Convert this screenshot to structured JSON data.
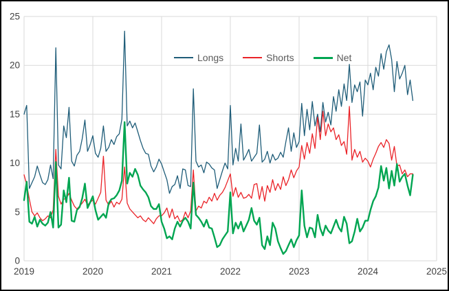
{
  "chart_data": {
    "type": "line",
    "title": "",
    "xlabel": "",
    "ylabel": "",
    "xlim": [
      2019,
      2025
    ],
    "ylim": [
      0,
      25
    ],
    "x_ticks": [
      "2019",
      "2020",
      "2021",
      "2022",
      "2023",
      "2024",
      "2025"
    ],
    "x_tick_values": [
      2019,
      2020,
      2021,
      2022,
      2023,
      2024,
      2025
    ],
    "y_ticks": [
      "0",
      "5",
      "10",
      "15",
      "20",
      "25"
    ],
    "y_tick_values": [
      0,
      5,
      10,
      15,
      20,
      25
    ],
    "grid": true,
    "grid_color": "#d9d9d9",
    "tick_label_color": "#404040",
    "legend_position": "top-center-inside",
    "x_start": 2019.0,
    "x_step": 0.0384615,
    "series": [
      {
        "name": "Longs",
        "color": "#1e5c78",
        "line_width": 1.3,
        "values": [
          15.0,
          15.9,
          7.4,
          8.0,
          8.6,
          9.7,
          8.8,
          8.0,
          7.8,
          8.3,
          9.8,
          8.4,
          21.8,
          9.8,
          9.4,
          13.8,
          12.6,
          15.7,
          10.2,
          9.7,
          10.8,
          11.2,
          12.5,
          14.4,
          11.2,
          11.9,
          12.8,
          11.0,
          10.6,
          11.5,
          13.8,
          11.2,
          11.6,
          12.4,
          11.9,
          12.7,
          13.0,
          14.5,
          23.5,
          13.8,
          14.3,
          13.6,
          14.1,
          13.2,
          12.3,
          11.5,
          11.0,
          10.9,
          9.7,
          9.1,
          9.6,
          10.4,
          9.9,
          9.1,
          8.3,
          6.9,
          7.6,
          7.8,
          8.7,
          7.4,
          9.4,
          9.3,
          7.7,
          7.6,
          17.6,
          10.2,
          9.6,
          9.8,
          9.0,
          10.1,
          9.9,
          9.5,
          9.3,
          7.4,
          8.3,
          9.2,
          10.0,
          9.4,
          15.9,
          9.8,
          11.5,
          10.2,
          14.0,
          10.3,
          10.8,
          11.4,
          10.2,
          10.6,
          11.0,
          13.9,
          10.1,
          10.4,
          11.2,
          10.0,
          10.9,
          10.3,
          10.5,
          11.1,
          10.6,
          12.2,
          13.6,
          11.2,
          13.1,
          11.6,
          12.2,
          16.1,
          12.8,
          15.5,
          13.4,
          16.3,
          13.8,
          15.0,
          13.2,
          16.2,
          14.2,
          15.2,
          13.9,
          16.8,
          15.3,
          17.5,
          15.8,
          18.1,
          16.4,
          20.1,
          16.2,
          18.0,
          17.3,
          18.3,
          14.8,
          18.5,
          18.0,
          19.2,
          17.5,
          19.8,
          18.9,
          21.2,
          19.6,
          21.4,
          22.1,
          20.6,
          17.3,
          20.4,
          18.6,
          19.2,
          20.0,
          17.0,
          18.5,
          16.4
        ]
      },
      {
        "name": "Shorts",
        "color": "#ea2227",
        "line_width": 1.3,
        "values": [
          8.8,
          7.8,
          6.3,
          5.0,
          4.6,
          4.9,
          4.4,
          4.1,
          4.3,
          4.6,
          4.4,
          5.2,
          11.4,
          6.6,
          5.8,
          6.3,
          6.4,
          6.9,
          6.2,
          5.6,
          5.3,
          5.6,
          5.9,
          6.3,
          5.7,
          6.0,
          6.2,
          5.8,
          6.4,
          7.0,
          10.7,
          6.2,
          5.7,
          6.1,
          5.5,
          6.0,
          5.8,
          6.3,
          9.6,
          5.9,
          5.3,
          5.0,
          4.7,
          4.4,
          4.6,
          4.2,
          4.0,
          4.4,
          4.1,
          3.8,
          4.3,
          4.6,
          4.6,
          4.9,
          5.4,
          4.4,
          5.3,
          4.3,
          4.6,
          4.0,
          4.2,
          5.0,
          4.4,
          5.1,
          9.3,
          5.1,
          5.6,
          5.4,
          6.1,
          5.9,
          6.5,
          6.1,
          6.9,
          6.2,
          6.7,
          7.0,
          7.5,
          8.2,
          8.9,
          6.6,
          7.5,
          6.5,
          7.0,
          6.4,
          6.5,
          6.8,
          6.4,
          7.8,
          7.9,
          6.3,
          7.6,
          6.1,
          7.7,
          7.0,
          8.3,
          7.2,
          7.9,
          7.3,
          8.6,
          7.7,
          8.3,
          9.3,
          8.5,
          9.2,
          9.6,
          11.8,
          10.4,
          12.1,
          11.0,
          13.0,
          11.5,
          14.7,
          12.4,
          15.3,
          12.8,
          14.0,
          13.2,
          13.6,
          12.4,
          12.9,
          11.8,
          12.2,
          10.9,
          15.8,
          10.3,
          11.4,
          10.6,
          11.2,
          10.1,
          10.5,
          10.2,
          9.6,
          10.4,
          11.0,
          11.7,
          12.1,
          11.6,
          12.4,
          12.0,
          10.3,
          11.7,
          9.7,
          9.8,
          8.9,
          9.3,
          8.6,
          8.9,
          8.9
        ]
      },
      {
        "name": "Net",
        "color": "#00a551",
        "line_width": 2.4,
        "values": [
          6.2,
          8.1,
          4.0,
          3.8,
          4.5,
          3.5,
          4.2,
          3.8,
          3.6,
          3.9,
          5.0,
          3.4,
          10.1,
          3.4,
          3.7,
          7.2,
          6.0,
          8.5,
          4.1,
          4.0,
          5.2,
          5.5,
          6.4,
          7.9,
          5.4,
          6.0,
          6.6,
          5.2,
          4.2,
          4.5,
          4.8,
          4.4,
          5.9,
          6.3,
          6.4,
          6.7,
          7.2,
          8.2,
          14.2,
          7.9,
          9.0,
          8.6,
          9.4,
          8.8,
          7.7,
          7.3,
          7.0,
          6.5,
          5.6,
          5.3,
          5.3,
          5.8,
          4.0,
          3.3,
          2.3,
          2.5,
          2.2,
          3.3,
          4.0,
          3.5,
          4.1,
          4.4,
          4.0,
          3.3,
          8.0,
          4.7,
          4.4,
          4.0,
          3.5,
          4.2,
          3.4,
          3.3,
          2.4,
          1.4,
          1.6,
          2.2,
          2.6,
          3.0,
          7.0,
          2.8,
          3.9,
          3.3,
          4.0,
          3.0,
          3.6,
          4.2,
          5.4,
          4.1,
          3.7,
          4.4,
          1.6,
          1.2,
          2.5,
          1.6,
          3.9,
          3.3,
          2.0,
          1.3,
          0.7,
          1.0,
          1.6,
          2.2,
          1.4,
          2.1,
          2.6,
          7.2,
          3.6,
          2.4,
          3.4,
          3.3,
          2.4,
          4.7,
          3.3,
          2.6,
          3.6,
          3.1,
          2.8,
          3.5,
          4.2,
          3.4,
          3.0,
          4.5,
          3.8,
          1.8,
          2.0,
          3.0,
          4.3,
          3.0,
          3.4,
          4.1,
          4.1,
          5.2,
          6.1,
          6.6,
          7.5,
          9.7,
          8.2,
          9.5,
          7.4,
          9.2,
          7.7,
          9.9,
          8.1,
          8.6,
          8.9,
          7.7,
          6.7,
          8.8
        ]
      }
    ]
  }
}
